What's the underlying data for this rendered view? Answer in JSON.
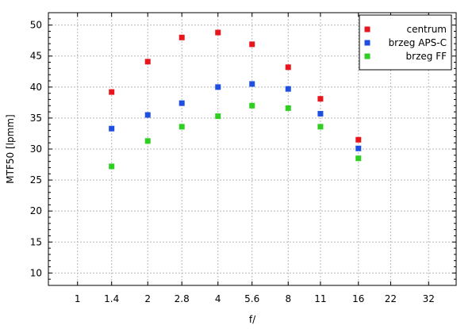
{
  "chart_data": {
    "type": "scatter",
    "title": "",
    "xlabel": "f/",
    "ylabel": "MTF50 [lpmm]",
    "x_scale": "log",
    "x_ticks": [
      1,
      1.4,
      2,
      2.8,
      4,
      5.6,
      8,
      11,
      16,
      22,
      32
    ],
    "x_tick_labels": [
      "1",
      "1.4",
      "2",
      "2.8",
      "4",
      "5.6",
      "8",
      "11",
      "16",
      "22",
      "32"
    ],
    "xlim": [
      0.75,
      42
    ],
    "ylim": [
      8,
      52
    ],
    "y_ticks": [
      10,
      15,
      20,
      25,
      30,
      35,
      40,
      45,
      50
    ],
    "y_tick_labels": [
      "10",
      "15",
      "20",
      "25",
      "30",
      "35",
      "40",
      "45",
      "50"
    ],
    "grid": true,
    "legend_position": "top-right",
    "series": [
      {
        "name": "centrum",
        "color": "#e8161c",
        "x": [
          1.4,
          2,
          2.8,
          4,
          5.6,
          8,
          11,
          16
        ],
        "y": [
          39.2,
          44.1,
          48.0,
          48.8,
          46.9,
          43.2,
          38.1,
          31.5
        ]
      },
      {
        "name": "brzeg APS-C",
        "color": "#1f4fe0",
        "x": [
          1.4,
          2,
          2.8,
          4,
          5.6,
          8,
          11,
          16
        ],
        "y": [
          33.3,
          35.5,
          37.4,
          40.0,
          40.5,
          39.7,
          35.7,
          30.1
        ]
      },
      {
        "name": "brzeg FF",
        "color": "#2fcf22",
        "x": [
          1.4,
          2,
          2.8,
          4,
          5.6,
          8,
          11,
          16
        ],
        "y": [
          27.2,
          31.3,
          33.6,
          35.3,
          37.0,
          36.6,
          33.6,
          28.5
        ]
      }
    ]
  }
}
